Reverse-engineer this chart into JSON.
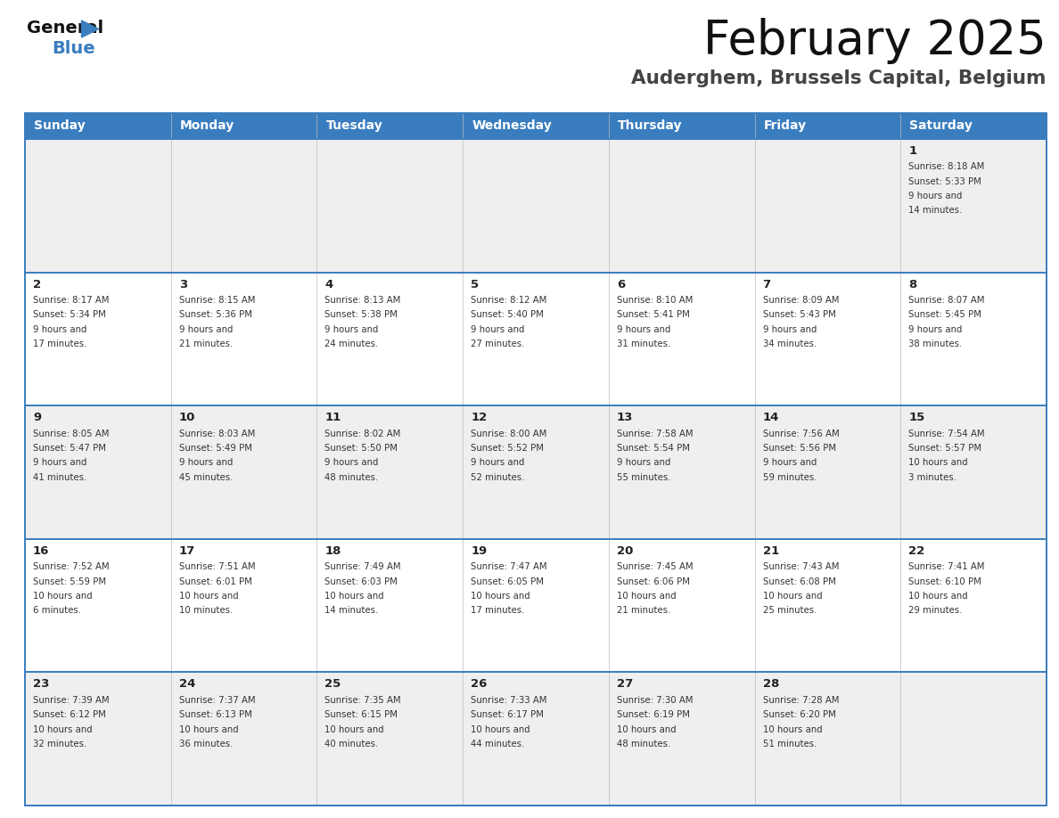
{
  "title": "February 2025",
  "subtitle": "Auderghem, Brussels Capital, Belgium",
  "header_color": "#3a7dbf",
  "header_text_color": "#ffffff",
  "cell_bg_color_gray": "#efefef",
  "cell_bg_color_white": "#ffffff",
  "border_color": "#3a7dbf",
  "text_color": "#333333",
  "day_num_color": "#222222",
  "day_headers": [
    "Sunday",
    "Monday",
    "Tuesday",
    "Wednesday",
    "Thursday",
    "Friday",
    "Saturday"
  ],
  "days": [
    {
      "day": 1,
      "col": 6,
      "row": 0,
      "sunrise": "8:18 AM",
      "sunset": "5:33 PM",
      "daylight": "9 hours and 14 minutes"
    },
    {
      "day": 2,
      "col": 0,
      "row": 1,
      "sunrise": "8:17 AM",
      "sunset": "5:34 PM",
      "daylight": "9 hours and 17 minutes"
    },
    {
      "day": 3,
      "col": 1,
      "row": 1,
      "sunrise": "8:15 AM",
      "sunset": "5:36 PM",
      "daylight": "9 hours and 21 minutes"
    },
    {
      "day": 4,
      "col": 2,
      "row": 1,
      "sunrise": "8:13 AM",
      "sunset": "5:38 PM",
      "daylight": "9 hours and 24 minutes"
    },
    {
      "day": 5,
      "col": 3,
      "row": 1,
      "sunrise": "8:12 AM",
      "sunset": "5:40 PM",
      "daylight": "9 hours and 27 minutes"
    },
    {
      "day": 6,
      "col": 4,
      "row": 1,
      "sunrise": "8:10 AM",
      "sunset": "5:41 PM",
      "daylight": "9 hours and 31 minutes"
    },
    {
      "day": 7,
      "col": 5,
      "row": 1,
      "sunrise": "8:09 AM",
      "sunset": "5:43 PM",
      "daylight": "9 hours and 34 minutes"
    },
    {
      "day": 8,
      "col": 6,
      "row": 1,
      "sunrise": "8:07 AM",
      "sunset": "5:45 PM",
      "daylight": "9 hours and 38 minutes"
    },
    {
      "day": 9,
      "col": 0,
      "row": 2,
      "sunrise": "8:05 AM",
      "sunset": "5:47 PM",
      "daylight": "9 hours and 41 minutes"
    },
    {
      "day": 10,
      "col": 1,
      "row": 2,
      "sunrise": "8:03 AM",
      "sunset": "5:49 PM",
      "daylight": "9 hours and 45 minutes"
    },
    {
      "day": 11,
      "col": 2,
      "row": 2,
      "sunrise": "8:02 AM",
      "sunset": "5:50 PM",
      "daylight": "9 hours and 48 minutes"
    },
    {
      "day": 12,
      "col": 3,
      "row": 2,
      "sunrise": "8:00 AM",
      "sunset": "5:52 PM",
      "daylight": "9 hours and 52 minutes"
    },
    {
      "day": 13,
      "col": 4,
      "row": 2,
      "sunrise": "7:58 AM",
      "sunset": "5:54 PM",
      "daylight": "9 hours and 55 minutes"
    },
    {
      "day": 14,
      "col": 5,
      "row": 2,
      "sunrise": "7:56 AM",
      "sunset": "5:56 PM",
      "daylight": "9 hours and 59 minutes"
    },
    {
      "day": 15,
      "col": 6,
      "row": 2,
      "sunrise": "7:54 AM",
      "sunset": "5:57 PM",
      "daylight": "10 hours and 3 minutes"
    },
    {
      "day": 16,
      "col": 0,
      "row": 3,
      "sunrise": "7:52 AM",
      "sunset": "5:59 PM",
      "daylight": "10 hours and 6 minutes"
    },
    {
      "day": 17,
      "col": 1,
      "row": 3,
      "sunrise": "7:51 AM",
      "sunset": "6:01 PM",
      "daylight": "10 hours and 10 minutes"
    },
    {
      "day": 18,
      "col": 2,
      "row": 3,
      "sunrise": "7:49 AM",
      "sunset": "6:03 PM",
      "daylight": "10 hours and 14 minutes"
    },
    {
      "day": 19,
      "col": 3,
      "row": 3,
      "sunrise": "7:47 AM",
      "sunset": "6:05 PM",
      "daylight": "10 hours and 17 minutes"
    },
    {
      "day": 20,
      "col": 4,
      "row": 3,
      "sunrise": "7:45 AM",
      "sunset": "6:06 PM",
      "daylight": "10 hours and 21 minutes"
    },
    {
      "day": 21,
      "col": 5,
      "row": 3,
      "sunrise": "7:43 AM",
      "sunset": "6:08 PM",
      "daylight": "10 hours and 25 minutes"
    },
    {
      "day": 22,
      "col": 6,
      "row": 3,
      "sunrise": "7:41 AM",
      "sunset": "6:10 PM",
      "daylight": "10 hours and 29 minutes"
    },
    {
      "day": 23,
      "col": 0,
      "row": 4,
      "sunrise": "7:39 AM",
      "sunset": "6:12 PM",
      "daylight": "10 hours and 32 minutes"
    },
    {
      "day": 24,
      "col": 1,
      "row": 4,
      "sunrise": "7:37 AM",
      "sunset": "6:13 PM",
      "daylight": "10 hours and 36 minutes"
    },
    {
      "day": 25,
      "col": 2,
      "row": 4,
      "sunrise": "7:35 AM",
      "sunset": "6:15 PM",
      "daylight": "10 hours and 40 minutes"
    },
    {
      "day": 26,
      "col": 3,
      "row": 4,
      "sunrise": "7:33 AM",
      "sunset": "6:17 PM",
      "daylight": "10 hours and 44 minutes"
    },
    {
      "day": 27,
      "col": 4,
      "row": 4,
      "sunrise": "7:30 AM",
      "sunset": "6:19 PM",
      "daylight": "10 hours and 48 minutes"
    },
    {
      "day": 28,
      "col": 5,
      "row": 4,
      "sunrise": "7:28 AM",
      "sunset": "6:20 PM",
      "daylight": "10 hours and 51 minutes"
    }
  ],
  "num_rows": 5,
  "num_cols": 7
}
